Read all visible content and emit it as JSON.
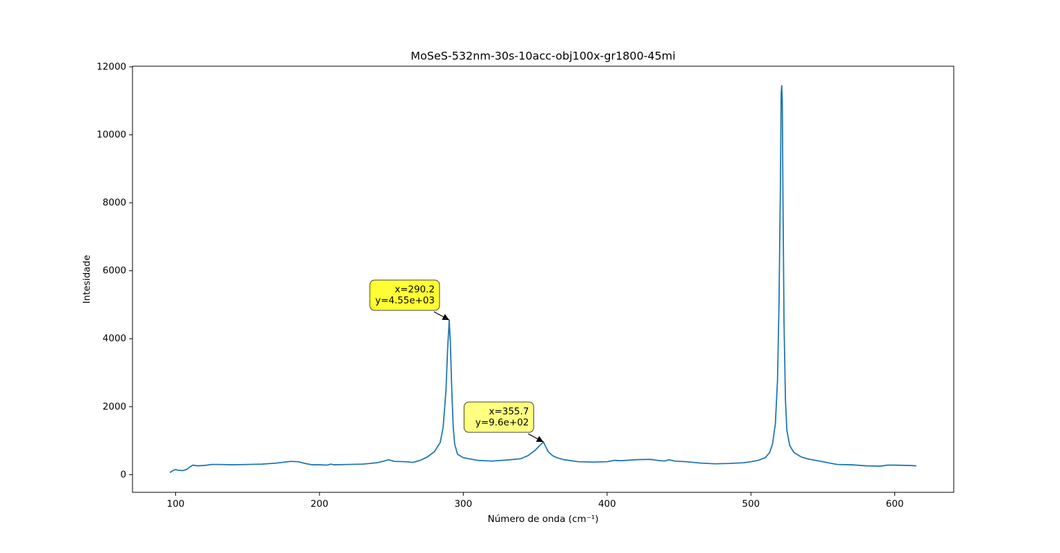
{
  "chart_data": {
    "type": "line",
    "title": "MoSeS-532nm-30s-10acc-obj100x-gr1800-45mi",
    "xlabel": "Número de onda (cm⁻¹)",
    "ylabel": "Intesidade",
    "color": "#1f77b4",
    "xlim": [
      70,
      641
    ],
    "ylim": [
      -520,
      12020
    ],
    "xticks": [
      100,
      200,
      300,
      400,
      500,
      600
    ],
    "yticks": [
      0,
      2000,
      4000,
      6000,
      8000,
      10000,
      12000
    ],
    "x": [
      96,
      98,
      100,
      102,
      105,
      108,
      110,
      112,
      115,
      120,
      125,
      130,
      140,
      150,
      160,
      170,
      180,
      185,
      190,
      195,
      200,
      205,
      208,
      210,
      220,
      230,
      240,
      245,
      248,
      252,
      260,
      265,
      270,
      275,
      280,
      284,
      286,
      288,
      289,
      290.2,
      291,
      292,
      293,
      294,
      296,
      300,
      305,
      310,
      320,
      330,
      340,
      345,
      350,
      353,
      355.7,
      357,
      359,
      362,
      365,
      370,
      380,
      390,
      400,
      405,
      410,
      420,
      430,
      435,
      440,
      443,
      447,
      455,
      465,
      475,
      485,
      495,
      500,
      505,
      510,
      513,
      515,
      517,
      518.5,
      519.5,
      520.5,
      521,
      521.4,
      521.8,
      522.3,
      523,
      524,
      525,
      527,
      530,
      535,
      540,
      550,
      560,
      570,
      580,
      590,
      595,
      600,
      610,
      615
    ],
    "values": [
      60,
      120,
      150,
      130,
      120,
      160,
      230,
      280,
      260,
      270,
      300,
      300,
      290,
      300,
      310,
      340,
      390,
      380,
      330,
      290,
      290,
      280,
      310,
      290,
      300,
      310,
      350,
      400,
      440,
      390,
      380,
      360,
      420,
      520,
      680,
      950,
      1400,
      2500,
      3600,
      4550,
      3900,
      2500,
      1400,
      900,
      600,
      500,
      460,
      420,
      400,
      430,
      470,
      560,
      720,
      850,
      960,
      850,
      680,
      560,
      500,
      440,
      380,
      370,
      380,
      420,
      410,
      440,
      450,
      420,
      400,
      440,
      400,
      380,
      340,
      320,
      330,
      350,
      380,
      420,
      500,
      650,
      900,
      1500,
      2800,
      5000,
      8500,
      11200,
      11450,
      11000,
      8000,
      4500,
      2200,
      1300,
      850,
      650,
      520,
      460,
      380,
      300,
      290,
      260,
      250,
      280,
      280,
      270,
      260
    ],
    "annotations": [
      {
        "text": [
          "x=290.2",
          "y=4.55e+03"
        ],
        "x": 290.2,
        "y": 4550,
        "color": "#ffff33"
      },
      {
        "text": [
          "x=355.7",
          "y=9.6e+02"
        ],
        "x": 355.7,
        "y": 960,
        "color": "#ffff80"
      }
    ]
  }
}
